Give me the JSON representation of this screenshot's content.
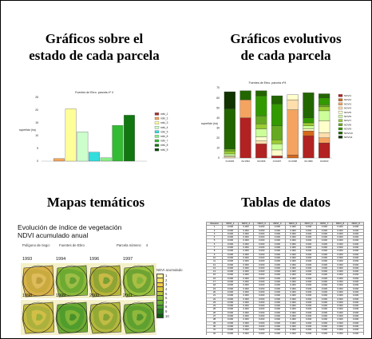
{
  "titles": {
    "q1_line1": "Gráficos sobre el",
    "q1_line2": "estado de cada parcela",
    "q2_line1": "Gráficos evolutivos",
    "q2_line2": "de cada parcela",
    "q3": "Mapas temáticos",
    "q4": "Tablas de datos"
  },
  "colors": {
    "frame": "#000000"
  },
  "chart_data": [
    {
      "type": "bar",
      "title": "Fuentes de Ebro. parcela nº 4",
      "ylabel": "superficie (ha)",
      "ylim": [
        0,
        25
      ],
      "yticks": [
        "25",
        "20",
        "15",
        "10",
        "5",
        "0"
      ],
      "categories": [
        "ndvi_1",
        "ndvi_2",
        "ndvi_3",
        "ndvi_4",
        "ndvi_5",
        "ndvi_6",
        "ndvi_7",
        "ndvi_8",
        "ndvi_9"
      ],
      "values": [
        0,
        1,
        20.5,
        11.5,
        3.5,
        1.3,
        14,
        18,
        0
      ],
      "colors": [
        "#a0302a",
        "#f3a55a",
        "#ffff99",
        "#ccffcc",
        "#33dddd",
        "#88ee88",
        "#33bb33",
        "#117711",
        "#004400"
      ]
    },
    {
      "type": "bar",
      "stacked": true,
      "title": "Fuentes de Ebro. parcela nº4",
      "ylabel": "superficie (ha)",
      "ylim": [
        0,
        70
      ],
      "yticks": [
        "70",
        "60",
        "50",
        "40",
        "30",
        "20",
        "10",
        "0"
      ],
      "categories": [
        "01/1993",
        "01/1994",
        "01/1996",
        "01/1997",
        "01/1998",
        "01/1999",
        "01/2000"
      ],
      "series": [
        {
          "name": "NDVI1",
          "color": "#b22222",
          "values": [
            0,
            40,
            14,
            2,
            0,
            22,
            15
          ]
        },
        {
          "name": "NDVI2",
          "color": "#d2691e",
          "values": [
            0,
            0,
            0,
            0,
            3,
            5,
            0
          ]
        },
        {
          "name": "NDVI3",
          "color": "#f4a460",
          "values": [
            0,
            18,
            0,
            0,
            45,
            0,
            5
          ]
        },
        {
          "name": "NDVI4",
          "color": "#ffdead",
          "values": [
            1,
            0,
            3,
            0,
            10,
            0,
            5
          ]
        },
        {
          "name": "NDVI5",
          "color": "#ffffcc",
          "values": [
            1,
            0,
            4,
            6,
            5,
            2,
            12
          ]
        },
        {
          "name": "NDVI6",
          "color": "#ccff99",
          "values": [
            2,
            0,
            8,
            6,
            0,
            3,
            10
          ]
        },
        {
          "name": "NDVI7",
          "color": "#99cc33",
          "values": [
            3,
            0,
            5,
            4,
            0,
            3,
            4
          ]
        },
        {
          "name": "NDVI8",
          "color": "#66aa22",
          "values": [
            2,
            0,
            8,
            14,
            0,
            0,
            2
          ]
        },
        {
          "name": "NDVI9",
          "color": "#339900",
          "values": [
            0,
            0,
            20,
            22,
            0,
            5,
            7
          ]
        },
        {
          "name": "NDVI10",
          "color": "#226600",
          "values": [
            40,
            9,
            5,
            8,
            0,
            25,
            4
          ]
        },
        {
          "name": "NDVI11",
          "color": "#113300",
          "values": [
            17,
            0,
            0,
            0,
            0,
            0,
            0
          ]
        }
      ]
    }
  ],
  "map": {
    "title": "Evolución de índice de vegetación NDVI acumulado anual",
    "poligono": "Polígono de riego",
    "poligono_val": "Fuentes de Ebro",
    "parcela": "Parcela número",
    "parcela_val": "4",
    "years": [
      "1993",
      "1994",
      "1996",
      "1997",
      "1998",
      "1999",
      "2000",
      "2001"
    ],
    "legend_title": "NDVI acumulado",
    "legend_items": [
      "1",
      "2",
      "3",
      "4",
      "5",
      "6",
      "7",
      "8",
      "9",
      "10"
    ],
    "legend_colors": [
      "#fff3a0",
      "#ffe066",
      "#f3c94a",
      "#d8c43a",
      "#b8c43a",
      "#8fbf3a",
      "#66b133",
      "#3e9a2a",
      "#1f7a1f",
      "#0b5a10"
    ],
    "tile_colors": [
      [
        "#d8b24a",
        "#c8a83e",
        "#e2c060",
        "#b89a3a"
      ],
      [
        "#8ab83a",
        "#6aa832",
        "#a6c24a",
        "#5c9a2e"
      ],
      [
        "#b8b43a",
        "#8aa234",
        "#d2be4a",
        "#6a9a30"
      ],
      [
        "#9ac03e",
        "#6aa032",
        "#b4c446",
        "#7db038"
      ],
      [
        "#c6ba42",
        "#a8b03e",
        "#d8c24a",
        "#92ae36"
      ],
      [
        "#6aa832",
        "#4e9a2c",
        "#8ab83a",
        "#3e8a28"
      ],
      [
        "#b4b83e",
        "#8ea834",
        "#c8c046",
        "#7a9e30"
      ],
      [
        "#7ab038",
        "#5c9e30",
        "#98bc3e",
        "#4a8e2a"
      ]
    ],
    "scale_label": "metros",
    "scale_ticks": [
      "200",
      "0",
      "200",
      "400"
    ]
  },
  "table": {
    "headers": [
      "Muestra",
      "NDVI_1",
      "NDVI_2",
      "NDVI_3",
      "NDVI_4",
      "NDVI_5",
      "NDVI_6",
      "NDVI_7",
      "NDVI_8",
      "NDVI_9"
    ],
    "rows": [
      [
        "1",
        "0.000",
        "0.000",
        "0.000",
        "0.000",
        "0.000",
        "0.000",
        "0.000",
        "0.000",
        "0.000"
      ],
      [
        "2",
        "0.000",
        "0.000",
        "0.000",
        "0.000",
        "0.000",
        "0.000",
        "0.000",
        "0.000",
        "0.000"
      ],
      [
        "3",
        "0.000",
        "0.000",
        "0.000",
        "0.000",
        "0.000",
        "0.000",
        "0.000",
        "0.000",
        "0.000"
      ],
      [
        "4",
        "0.000",
        "0.000",
        "0.000",
        "0.000",
        "0.000",
        "0.000",
        "0.000",
        "0.000",
        "0.000"
      ],
      [
        "5",
        "0.000",
        "0.000",
        "0.000",
        "0.000",
        "0.000",
        "0.000",
        "0.000",
        "0.000",
        "0.000"
      ],
      [
        "6",
        "0.000",
        "0.000",
        "0.000",
        "0.000",
        "0.000",
        "0.000",
        "0.000",
        "0.000",
        "0.000"
      ],
      [
        "7",
        "0.000",
        "0.000",
        "0.000",
        "0.000",
        "0.000",
        "0.000",
        "0.000",
        "0.000",
        "0.000"
      ],
      [
        "8",
        "0.000",
        "0.000",
        "0.000",
        "0.000",
        "0.000",
        "0.000",
        "0.000",
        "0.000",
        "0.000"
      ],
      [
        "9",
        "0.000",
        "0.000",
        "0.000",
        "0.000",
        "0.000",
        "0.000",
        "0.000",
        "0.000",
        "0.000"
      ],
      [
        "10",
        "0.000",
        "0.000",
        "0.000",
        "0.000",
        "0.000",
        "0.000",
        "0.000",
        "0.000",
        "0.000"
      ],
      [
        "11",
        "0.000",
        "0.000",
        "0.000",
        "0.000",
        "0.000",
        "0.000",
        "0.000",
        "0.000",
        "0.000"
      ],
      [
        "12",
        "0.000",
        "0.000",
        "0.000",
        "0.000",
        "0.000",
        "0.000",
        "0.000",
        "0.000",
        "0.000"
      ],
      [
        "13",
        "0.000",
        "0.000",
        "0.000",
        "0.000",
        "0.000",
        "0.000",
        "0.000",
        "0.000",
        "0.000"
      ],
      [
        "14",
        "0.000",
        "0.000",
        "0.000",
        "0.000",
        "0.000",
        "0.000",
        "0.000",
        "0.000",
        "0.000"
      ],
      [
        "15",
        "0.000",
        "0.000",
        "0.000",
        "0.000",
        "0.000",
        "0.000",
        "0.000",
        "0.000",
        "0.000"
      ],
      [
        "16",
        "0.000",
        "0.000",
        "0.000",
        "0.000",
        "0.000",
        "0.000",
        "0.000",
        "0.000",
        "0.000"
      ],
      [
        "17",
        "0.000",
        "0.000",
        "0.000",
        "0.000",
        "0.000",
        "0.000",
        "0.000",
        "0.000",
        "0.000"
      ],
      [
        "18",
        "0.000",
        "0.000",
        "0.000",
        "0.000",
        "0.000",
        "0.000",
        "0.000",
        "0.000",
        "0.000"
      ],
      [
        "19",
        "0.000",
        "0.000",
        "0.000",
        "0.000",
        "0.000",
        "0.000",
        "0.000",
        "0.000",
        "0.000"
      ],
      [
        "20",
        "0.000",
        "0.000",
        "0.000",
        "0.000",
        "0.000",
        "0.000",
        "0.000",
        "0.000",
        "0.000"
      ],
      [
        "21",
        "0.000",
        "0.000",
        "0.000",
        "0.000",
        "0.000",
        "0.000",
        "0.000",
        "0.000",
        "0.000"
      ],
      [
        "22",
        "0.000",
        "0.000",
        "0.000",
        "0.000",
        "0.000",
        "0.000",
        "0.000",
        "0.000",
        "0.000"
      ],
      [
        "23",
        "0.000",
        "0.000",
        "0.000",
        "0.000",
        "0.000",
        "0.000",
        "0.000",
        "0.000",
        "0.000"
      ],
      [
        "24",
        "0.000",
        "0.000",
        "0.000",
        "0.000",
        "0.000",
        "0.000",
        "0.000",
        "0.000",
        "0.000"
      ],
      [
        "25",
        "0.000",
        "0.000",
        "0.000",
        "0.000",
        "0.000",
        "0.000",
        "0.000",
        "0.000",
        "0.000"
      ],
      [
        "26",
        "0.000",
        "0.000",
        "0.000",
        "0.000",
        "0.000",
        "0.000",
        "0.000",
        "0.000",
        "0.000"
      ],
      [
        "27",
        "0.000",
        "0.000",
        "0.000",
        "0.000",
        "0.000",
        "0.000",
        "0.000",
        "0.000",
        "0.000"
      ],
      [
        "28",
        "0.000",
        "0.000",
        "0.000",
        "0.000",
        "0.000",
        "0.000",
        "0.000",
        "0.000",
        "0.000"
      ],
      [
        "29",
        "0.000",
        "0.000",
        "0.000",
        "0.000",
        "0.000",
        "0.000",
        "0.000",
        "0.000",
        "0.000"
      ],
      [
        "30",
        "0.000",
        "0.000",
        "0.000",
        "0.000",
        "0.000",
        "0.000",
        "0.000",
        "0.000",
        "0.000"
      ],
      [
        "31",
        "0.000",
        "0.000",
        "0.000",
        "0.000",
        "0.000",
        "0.000",
        "0.000",
        "0.000",
        "0.000"
      ],
      [
        "32",
        "0.000",
        "0.000",
        "0.000",
        "0.000",
        "0.000",
        "0.000",
        "0.000",
        "0.000",
        "0.000"
      ],
      [
        "33",
        "0.000",
        "0.000",
        "0.000",
        "0.000",
        "0.000",
        "0.000",
        "0.000",
        "0.000",
        "0.000"
      ],
      [
        "34",
        "0.000",
        "0.000",
        "0.000",
        "0.000",
        "0.000",
        "0.000",
        "0.000",
        "0.000",
        "0.000"
      ],
      [
        "35",
        "0.000",
        "0.000",
        "0.000",
        "0.000",
        "0.000",
        "0.000",
        "0.000",
        "0.000",
        "0.000"
      ],
      [
        "36",
        "0.000",
        "0.000",
        "0.000",
        "0.000",
        "0.000",
        "0.000",
        "0.000",
        "0.000",
        "0.000"
      ],
      [
        "37",
        "0.000",
        "0.000",
        "0.000",
        "0.000",
        "0.000",
        "0.000",
        "0.000",
        "0.000",
        "0.000"
      ]
    ]
  }
}
